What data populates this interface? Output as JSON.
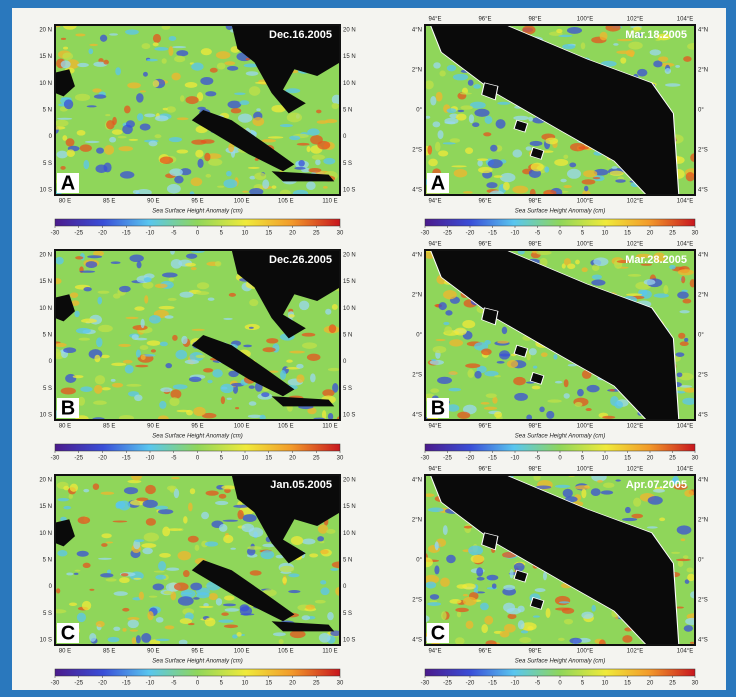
{
  "columns": [
    {
      "x_labels": [
        "80 E",
        "85 E",
        "90 E",
        "95 E",
        "100 E",
        "105 E",
        "110 E"
      ],
      "y_labels": [
        "20 N",
        "15 N",
        "10 N",
        "5 N",
        "0",
        "5 S",
        "10 S"
      ],
      "panels": [
        {
          "date": "Dec.16.2005",
          "letter": "A"
        },
        {
          "date": "Dec.26.2005",
          "letter": "B"
        },
        {
          "date": "Jan.05.2005",
          "letter": "C"
        }
      ]
    },
    {
      "x_labels": [
        "94°E",
        "96°E",
        "98°E",
        "100°E",
        "102°E",
        "104°E"
      ],
      "y_labels": [
        "4°N",
        "2°N",
        "0°",
        "2°S",
        "4°S"
      ],
      "panels": [
        {
          "date": "Mar.18.2005",
          "letter": "A"
        },
        {
          "date": "Mar.28.2005",
          "letter": "B"
        },
        {
          "date": "Apr.07.2005",
          "letter": "C"
        }
      ]
    }
  ],
  "colorbar_ticks": [
    -30,
    -25,
    -20,
    -15,
    -10,
    -5,
    0,
    5,
    10,
    15,
    20,
    25,
    30
  ],
  "colorbar_caption": "Sea Surface Height Anomaly (cm)"
}
